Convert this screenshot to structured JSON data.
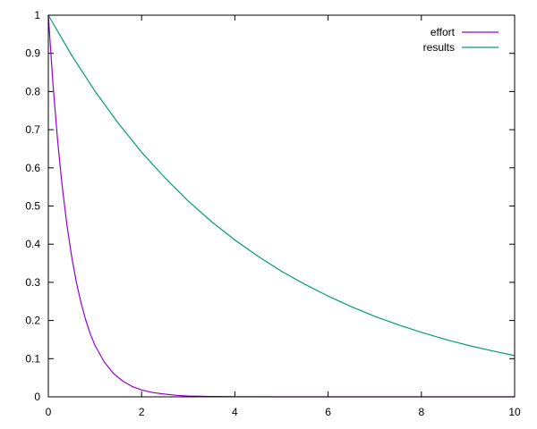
{
  "chart_data": {
    "type": "line",
    "title": "",
    "xlabel": "",
    "ylabel": "",
    "xlim": [
      0,
      10
    ],
    "ylim": [
      0,
      1
    ],
    "x_ticks": [
      0,
      2,
      4,
      6,
      8,
      10
    ],
    "x_tick_labels": [
      "0",
      "2",
      "4",
      "6",
      "8",
      "10"
    ],
    "y_ticks": [
      0,
      0.1,
      0.2,
      0.3,
      0.4,
      0.5,
      0.6,
      0.7,
      0.8,
      0.9,
      1
    ],
    "y_tick_labels": [
      "0",
      "0.1",
      "0.2",
      "0.3",
      "0.4",
      "0.5",
      "0.6",
      "0.7",
      "0.8",
      "0.9",
      "1"
    ],
    "grid": false,
    "legend_position": "top-right",
    "series": [
      {
        "name": "effort",
        "color": "#9400d3",
        "x": [
          0,
          0.1,
          0.2,
          0.3,
          0.4,
          0.5,
          0.6,
          0.7,
          0.8,
          0.9,
          1.0,
          1.2,
          1.4,
          1.6,
          1.8,
          2.0,
          2.25,
          2.5,
          2.75,
          3.0,
          3.5,
          4.0,
          5.0,
          6.0,
          7.0,
          8.0,
          9.0,
          10.0
        ],
        "y": [
          1.0,
          0.819,
          0.67,
          0.549,
          0.449,
          0.368,
          0.301,
          0.247,
          0.202,
          0.165,
          0.135,
          0.091,
          0.061,
          0.041,
          0.027,
          0.018,
          0.011,
          0.007,
          0.004,
          0.002,
          0.001,
          0.0003,
          0.0,
          0.0,
          0.0,
          0.0,
          0.0,
          0.0
        ]
      },
      {
        "name": "results",
        "color": "#009e73",
        "x": [
          0,
          0.5,
          1,
          1.5,
          2,
          2.5,
          3,
          3.5,
          4,
          4.5,
          5,
          5.5,
          6,
          6.5,
          7,
          7.5,
          8,
          8.5,
          9,
          9.5,
          10
        ],
        "y": [
          1.0,
          0.895,
          0.801,
          0.717,
          0.641,
          0.574,
          0.513,
          0.459,
          0.411,
          0.368,
          0.329,
          0.295,
          0.264,
          0.236,
          0.211,
          0.189,
          0.169,
          0.151,
          0.135,
          0.121,
          0.108
        ]
      }
    ]
  }
}
